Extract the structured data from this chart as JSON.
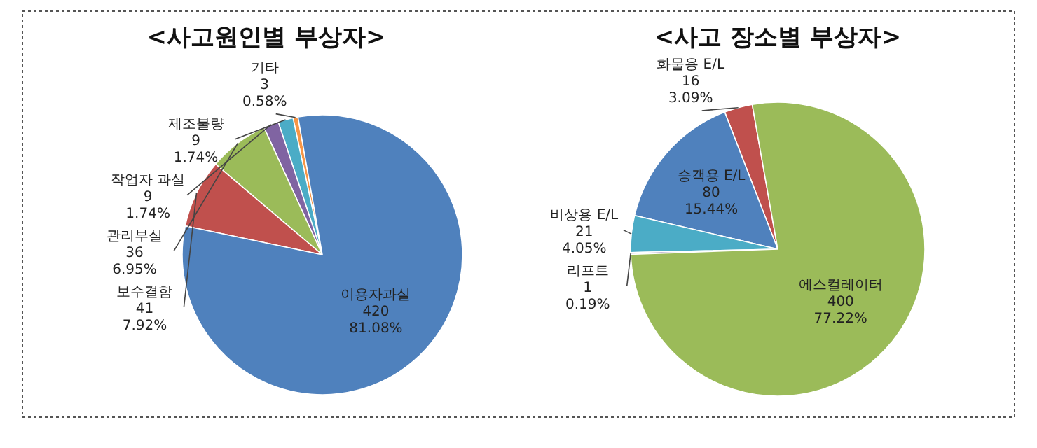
{
  "chart_data": [
    {
      "type": "pie",
      "title": "<사고원인별 부상자>",
      "categories": [
        "기타",
        "제조불량",
        "작업자 과실",
        "관리부실",
        "보수결함",
        "이용자과실"
      ],
      "values": [
        3,
        9,
        9,
        36,
        41,
        420
      ],
      "colors": [
        "#f79646",
        "#4bacc6",
        "#8064a2",
        "#9bbb59",
        "#c0504d",
        "#4f81bd"
      ],
      "value_labels": [
        "3\n0.58%",
        "9\n1.74%",
        "9\n1.74%",
        "36\n6.95%",
        "41\n7.92%",
        "420\n81.08%"
      ]
    },
    {
      "type": "pie",
      "title": "<사고 장소별 부상자>",
      "categories": [
        "화물용 E/L",
        "승객용 E/L",
        "비상용 E/L",
        "리프트",
        "에스컬레이터"
      ],
      "values": [
        16,
        80,
        21,
        1,
        400
      ],
      "colors": [
        "#c0504d",
        "#4f81bd",
        "#4bacc6",
        "#8064a2",
        "#9bbb59"
      ],
      "value_labels": [
        "16\n3.09%",
        "80\n15.44%",
        "21\n4.05%",
        "1\n0.19%",
        "400\n77.22%"
      ]
    }
  ]
}
